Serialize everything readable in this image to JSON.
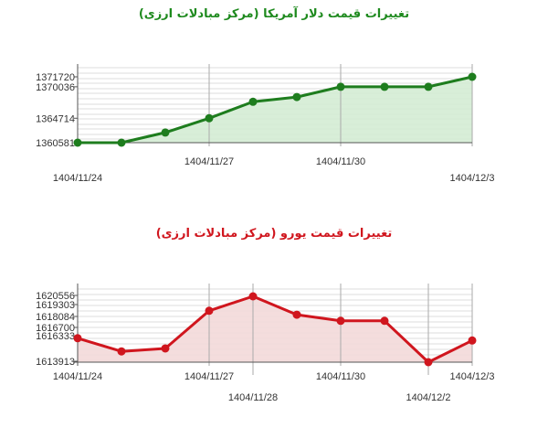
{
  "charts": [
    {
      "id": "usd",
      "title": "تغییرات قیمت دلار آمریکا (مرکز مبادلات ارزی)",
      "title_color": "#1e8a1e"
    },
    {
      "id": "eur",
      "title": "تغییرات قیمت یورو (مرکز مبادلات ارزی)",
      "title_color": "#d0161e"
    }
  ],
  "chart_data": [
    {
      "type": "area",
      "title": "تغییرات قیمت دلار آمریکا (مرکز مبادلات ارزی)",
      "x_ticks": [
        "1404/11/24",
        "1404/11/27",
        "1404/11/30",
        "1404/12/3"
      ],
      "x_ticks_lower": [],
      "y_ticks": [
        1371720,
        1370036,
        1364714,
        1360581
      ],
      "values": [
        1360581,
        1360581,
        1362300,
        1364714,
        1367500,
        1368300,
        1370036,
        1370036,
        1370036,
        1371720
      ],
      "ylim": [
        1360581,
        1371720
      ],
      "line_color": "#1e7d1e",
      "fill_color": "#d4ecd4",
      "grid": true
    },
    {
      "type": "area",
      "title": "تغییرات قیمت یورو (مرکز مبادلات ارزی)",
      "x_ticks": [
        "1404/11/24",
        "1404/11/27",
        "1404/11/30",
        "1404/12/3"
      ],
      "x_ticks_lower": [
        "1404/11/28",
        "1404/12/2"
      ],
      "y_ticks": [
        1620556,
        1619303,
        1618084,
        1616700,
        1616333,
        1613913
      ],
      "y_tick_labels": [
        "1620556",
        "1619303",
        "1618084",
        "1616700",
        "1616333",
        "1613913"
      ],
      "values": [
        1616333,
        1615000,
        1615300,
        1619100,
        1620556,
        1618700,
        1618084,
        1618084,
        1613913,
        1616100
      ],
      "ylim": [
        1613913,
        1620556
      ],
      "line_color": "#d0161e",
      "fill_color": "#f3d9d9",
      "grid": true
    }
  ]
}
